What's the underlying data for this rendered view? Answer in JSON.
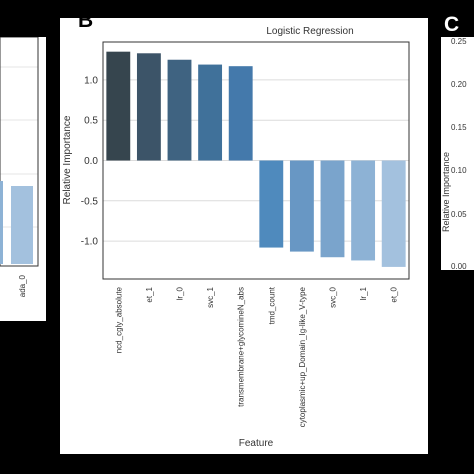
{
  "panels": {
    "left": {
      "tick_labels": [
        "ada_0"
      ]
    },
    "main": {
      "letter": "B"
    },
    "right": {
      "letter": "C",
      "ylabel": "Relative Importance",
      "yticks": [
        "0.00",
        "0.05",
        "0.10",
        "0.15",
        "0.20",
        "0.25"
      ]
    }
  },
  "chart_data": {
    "type": "bar",
    "title": "Logistic Regression",
    "xlabel": "Feature",
    "ylabel": "Relative Importance",
    "categories": [
      "ncd_cgly_absolute",
      "et_1",
      "lr_0",
      "svc_1",
      "transmembrane+glycomineN_abs",
      "tmd_count",
      "cytoplasmic+up_Domain_Ig-like_V-type",
      "svc_0",
      "lr_1",
      "et_0"
    ],
    "values": [
      1.35,
      1.33,
      1.25,
      1.19,
      1.17,
      -1.08,
      -1.13,
      -1.2,
      -1.24,
      -1.32
    ],
    "colors": [
      "#36454e",
      "#3c5468",
      "#3f6381",
      "#40719a",
      "#4479ab",
      "#4f8abd",
      "#6897c4",
      "#7aa4cc",
      "#8db2d5",
      "#a3c1de"
    ],
    "yticks": [
      -1.0,
      -0.5,
      0.0,
      0.5,
      1.0
    ],
    "ylim": [
      -1.47,
      1.47
    ],
    "grid": true
  }
}
